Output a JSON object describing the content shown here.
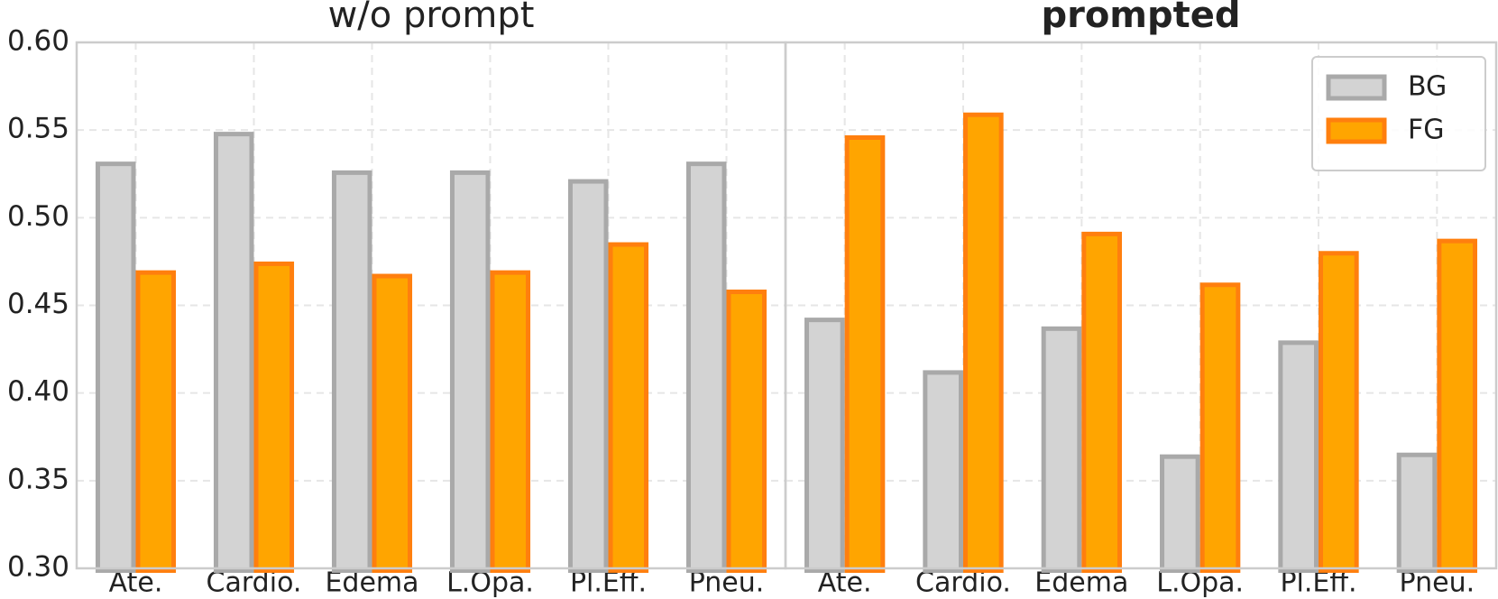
{
  "chart_data": [
    {
      "type": "bar",
      "title": "w/o prompt",
      "categories": [
        "Ate.",
        "Cardio.",
        "Edema",
        "L.Opa.",
        "Pl.Eff.",
        "Pneu."
      ],
      "series": [
        {
          "color": "#d3d3d3",
          "edgecolor": "#a9a9a9",
          "values": [
            0.532,
            0.549,
            0.527,
            0.527,
            0.522,
            0.532
          ]
        },
        {
          "color": "#ffa500",
          "edgecolor": "#ff7f0e",
          "values": [
            0.47,
            0.475,
            0.468,
            0.47,
            0.486,
            0.459
          ]
        }
      ],
      "ylim": [
        0.3,
        0.6
      ],
      "yticks": [
        {
          "value": 0.3,
          "label": "0.30"
        },
        {
          "value": 0.35,
          "label": "0.35"
        },
        {
          "value": 0.4,
          "label": "0.40"
        },
        {
          "value": 0.45,
          "label": "0.45"
        },
        {
          "value": 0.5,
          "label": "0.50"
        },
        {
          "value": 0.55,
          "label": "0.55"
        },
        {
          "value": 0.6,
          "label": "0.60"
        }
      ],
      "grid": true
    },
    {
      "type": "bar",
      "title": "prompted",
      "title_weight": "bold",
      "categories": [
        "Ate.",
        "Cardio.",
        "Edema",
        "L.Opa.",
        "Pl.Eff.",
        "Pneu."
      ],
      "series": [
        {
          "name": "BG",
          "color": "#d3d3d3",
          "edgecolor": "#a9a9a9",
          "values": [
            0.443,
            0.413,
            0.438,
            0.365,
            0.43,
            0.366
          ]
        },
        {
          "name": "FG",
          "color": "#ffa500",
          "edgecolor": "#ff7f0e",
          "values": [
            0.547,
            0.56,
            0.492,
            0.463,
            0.481,
            0.488
          ]
        }
      ],
      "ylim": [
        0.3,
        0.6
      ],
      "yticks": [
        0.3,
        0.35,
        0.4,
        0.45,
        0.5,
        0.55,
        0.6
      ],
      "grid": true,
      "legend": "upper right"
    }
  ]
}
